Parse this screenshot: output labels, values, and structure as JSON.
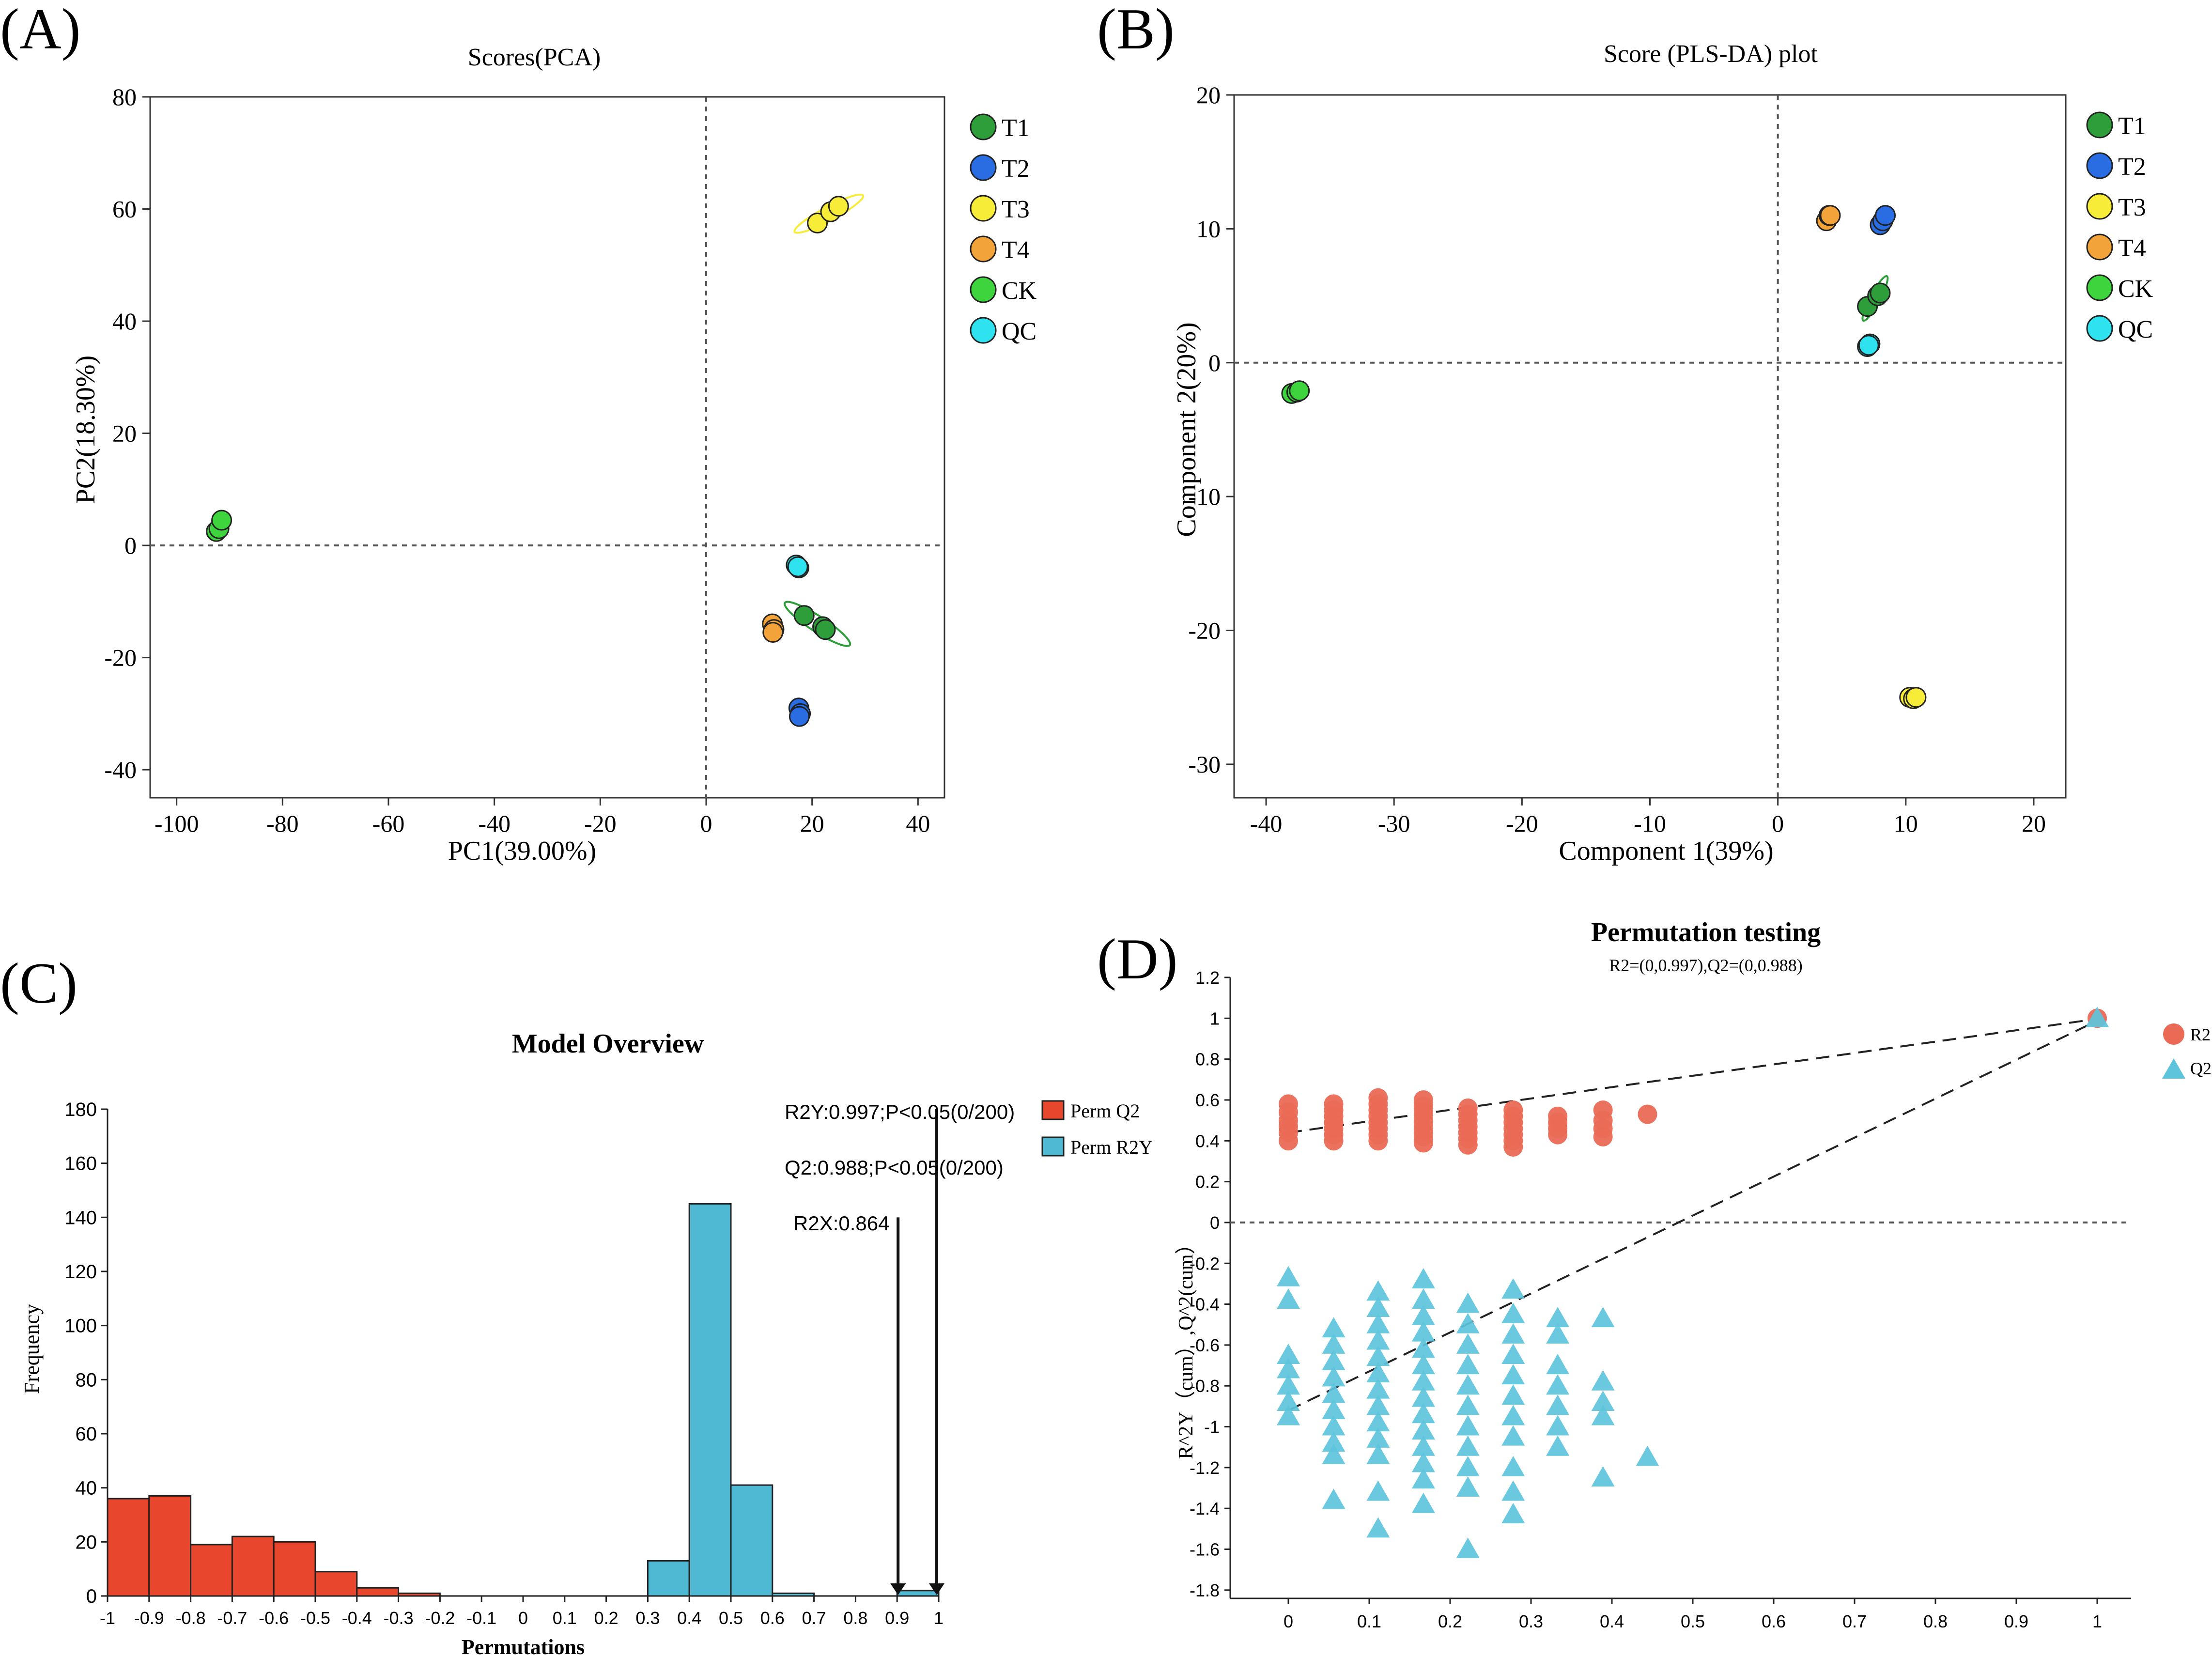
{
  "figure": {
    "panel_labels": [
      "(A)",
      "(B)",
      "(C)",
      "(D)"
    ]
  },
  "chart_data": [
    {
      "type": "scatter",
      "title": "Scores(PCA)",
      "xlabel": "PC1(39.00%)",
      "ylabel": "PC2(18.30%)",
      "xlim": [
        -105,
        45
      ],
      "ylim": [
        -45,
        80
      ],
      "xticks": [
        -100,
        -80,
        -60,
        -40,
        -20,
        0,
        20,
        40
      ],
      "yticks": [
        -40,
        -20,
        0,
        20,
        40,
        60,
        80
      ],
      "xtick_labels": [
        "-100",
        "-80",
        "-60",
        "-40",
        "-20",
        "0",
        "20",
        "40"
      ],
      "ytick_labels": [
        "-40",
        "-20",
        "0",
        "20",
        "40",
        "60",
        "80"
      ],
      "legend": [
        "T1",
        "T2",
        "T3",
        "T4",
        "CK",
        "QC"
      ],
      "series": [
        {
          "name": "T1",
          "color": "#2e9e3a",
          "x": [
            18.5,
            22,
            22.5
          ],
          "y": [
            -12.5,
            -14.5,
            -15
          ]
        },
        {
          "name": "T2",
          "color": "#2a6de3",
          "x": [
            17.5,
            17.8,
            17.6
          ],
          "y": [
            -29,
            -30,
            -30.5
          ]
        },
        {
          "name": "T3",
          "color": "#f7ec38",
          "x": [
            21,
            23.5,
            25
          ],
          "y": [
            57.5,
            59.5,
            60.5
          ]
        },
        {
          "name": "T4",
          "color": "#f2a33a",
          "x": [
            12.5,
            12.8,
            12.6
          ],
          "y": [
            -14,
            -15,
            -15.5
          ]
        },
        {
          "name": "CK",
          "color": "#3ed43e",
          "x": [
            -92.5,
            -92,
            -91.5
          ],
          "y": [
            2.5,
            3,
            4.5
          ]
        },
        {
          "name": "QC",
          "color": "#2ee3ef",
          "x": [
            17,
            17.5,
            17.3
          ],
          "y": [
            -3.5,
            -4,
            -3.8
          ]
        }
      ]
    },
    {
      "type": "scatter",
      "title": "Score (PLS-DA) plot",
      "xlabel": "Component 1(39%)",
      "ylabel": "Component 2(20%)",
      "xlim": [
        -42.5,
        22.5
      ],
      "ylim": [
        -32.5,
        20
      ],
      "xticks": [
        -40,
        -30,
        -20,
        -10,
        0,
        10,
        20
      ],
      "yticks": [
        -30,
        -20,
        -10,
        0,
        10,
        20
      ],
      "xtick_labels": [
        "-40",
        "-30",
        "-20",
        "-10",
        "0",
        "10",
        "20"
      ],
      "ytick_labels": [
        "-30",
        "-20",
        "-10",
        "0",
        "10",
        "20"
      ],
      "legend": [
        "T1",
        "T2",
        "T3",
        "T4",
        "CK",
        "QC"
      ],
      "series": [
        {
          "name": "T1",
          "color": "#2e9e3a",
          "x": [
            7,
            7.8,
            8
          ],
          "y": [
            4.2,
            5,
            5.2
          ]
        },
        {
          "name": "T2",
          "color": "#2a6de3",
          "x": [
            8,
            8.2,
            8.4
          ],
          "y": [
            10.3,
            10.6,
            11
          ]
        },
        {
          "name": "T3",
          "color": "#f7ec38",
          "x": [
            10.3,
            10.6,
            10.8
          ],
          "y": [
            -25,
            -25.1,
            -25
          ]
        },
        {
          "name": "T4",
          "color": "#f2a33a",
          "x": [
            3.8,
            4,
            4.1
          ],
          "y": [
            10.6,
            11,
            11
          ]
        },
        {
          "name": "CK",
          "color": "#3ed43e",
          "x": [
            -38,
            -37.6,
            -37.4
          ],
          "y": [
            -2.3,
            -2.2,
            -2.1
          ]
        },
        {
          "name": "QC",
          "color": "#2ee3ef",
          "x": [
            7,
            7.2,
            7.1
          ],
          "y": [
            1.2,
            1.4,
            1.3
          ]
        }
      ]
    },
    {
      "type": "bar",
      "title": "Model Overview",
      "xlabel": "Permutations",
      "ylabel": "Frequency",
      "xlim": [
        -1,
        1
      ],
      "ylim": [
        0,
        180
      ],
      "xticks": [
        -1,
        -0.9,
        -0.8,
        -0.7,
        -0.6,
        -0.5,
        -0.4,
        -0.3,
        -0.2,
        -0.1,
        0,
        0.1,
        0.2,
        0.3,
        0.4,
        0.5,
        0.6,
        0.7,
        0.8,
        0.9,
        1
      ],
      "xtick_labels": [
        "-1",
        "-0.9",
        "-0.8",
        "-0.7",
        "-0.6",
        "-0.5",
        "-0.4",
        "-0.3",
        "-0.2",
        "-0.1",
        "0",
        "0.1",
        "0.2",
        "0.3",
        "0.4",
        "0.5",
        "0.6",
        "0.7",
        "0.8",
        "0.9",
        "1"
      ],
      "yticks": [
        0,
        20,
        40,
        60,
        80,
        100,
        120,
        140,
        160,
        180
      ],
      "ytick_labels": [
        "0",
        "20",
        "40",
        "60",
        "80",
        "100",
        "120",
        "140",
        "160",
        "180"
      ],
      "bin_width": 0.1,
      "legend": [
        "Perm Q2",
        "Perm R2Y"
      ],
      "series": [
        {
          "name": "Perm Q2",
          "color": "#e8472d",
          "bin_starts": [
            -1,
            -0.9,
            -0.8,
            -0.7,
            -0.6,
            -0.5,
            -0.4,
            -0.3,
            -0.2,
            -0.1,
            0,
            0.1,
            0.2
          ],
          "values": [
            36,
            37,
            19,
            22,
            20,
            9,
            3,
            1,
            0,
            0,
            0,
            0,
            0
          ]
        },
        {
          "name": "Perm R2Y",
          "color": "#4fb8d3",
          "bin_starts": [
            0.3,
            0.4,
            0.5,
            0.6,
            0.7,
            0.9
          ],
          "values": [
            13,
            145,
            41,
            1,
            0,
            2
          ]
        }
      ],
      "annotations": [
        {
          "text": "R2Y:0.997;P<0.05(0/200)",
          "x": 1.0,
          "y": 180
        },
        {
          "text": "Q2:0.988;P<0.05(0/200)",
          "x": 0.988,
          "y": 160
        },
        {
          "text": "R2X:0.864",
          "x": 0.864,
          "y": 140
        }
      ]
    },
    {
      "type": "scatter",
      "title": "Permutation testing",
      "subtitle": "R2=(0,0.997),Q2=(0,0.988)",
      "xlabel": "",
      "ylabel": "R^2Y（cum）,Q^2(cum）",
      "xlim": [
        -0.05,
        1.05
      ],
      "ylim": [
        -1.9,
        1.2
      ],
      "xticks": [
        0,
        0.1,
        0.2,
        0.3,
        0.4,
        0.5,
        0.6,
        0.7,
        0.8,
        0.9,
        1
      ],
      "xtick_labels": [
        "0",
        "0.1",
        "0.2",
        "0.3",
        "0.4",
        "0.5",
        "0.6",
        "0.7",
        "0.8",
        "0.9",
        "1"
      ],
      "yticks": [
        1.2,
        1,
        0.8,
        0.6,
        0.4,
        0.2,
        0,
        -0.2,
        -0.4,
        -0.6,
        -0.8,
        -1,
        -1.2,
        -1.4,
        -1.6,
        -1.8
      ],
      "ytick_labels": [
        "1.2",
        "1",
        "0.8",
        "0.6",
        "0.4",
        "0.2",
        "0",
        "-0.2",
        "-0.4",
        "-0.6",
        "-0.8",
        "-1",
        "-1.2",
        "-1.4",
        "-1.6",
        "-1.8"
      ],
      "legend": [
        "R2",
        "Q2"
      ],
      "series": [
        {
          "name": "R2",
          "color": "#ea6a55",
          "marker": "circle",
          "groups": [
            {
              "x": 0,
              "y": [
                0.58,
                0.54,
                0.5,
                0.47,
                0.44,
                0.4
              ]
            },
            {
              "x": 0.056,
              "y": [
                0.58,
                0.55,
                0.52,
                0.49,
                0.46,
                0.43,
                0.4
              ]
            },
            {
              "x": 0.111,
              "y": [
                0.61,
                0.58,
                0.55,
                0.52,
                0.49,
                0.46,
                0.43,
                0.4
              ]
            },
            {
              "x": 0.167,
              "y": [
                0.6,
                0.57,
                0.54,
                0.51,
                0.48,
                0.45,
                0.42,
                0.39
              ]
            },
            {
              "x": 0.222,
              "y": [
                0.56,
                0.53,
                0.5,
                0.47,
                0.44,
                0.41,
                0.38
              ]
            },
            {
              "x": 0.278,
              "y": [
                0.55,
                0.52,
                0.49,
                0.46,
                0.43,
                0.4,
                0.37
              ]
            },
            {
              "x": 0.333,
              "y": [
                0.52,
                0.49,
                0.46,
                0.43
              ]
            },
            {
              "x": 0.389,
              "y": [
                0.55,
                0.5,
                0.46,
                0.42
              ]
            },
            {
              "x": 0.444,
              "y": [
                0.53
              ]
            },
            {
              "x": 1,
              "y": [
                1.0
              ]
            }
          ]
        },
        {
          "name": "Q2",
          "color": "#5ec4dc",
          "marker": "triangle",
          "groups": [
            {
              "x": 0,
              "y": [
                -0.27,
                -0.38,
                -0.65,
                -0.72,
                -0.8,
                -0.88,
                -0.95
              ]
            },
            {
              "x": 0.056,
              "y": [
                -0.52,
                -0.6,
                -0.68,
                -0.76,
                -0.84,
                -0.92,
                -1.0,
                -1.08,
                -1.14,
                -1.36
              ]
            },
            {
              "x": 0.111,
              "y": [
                -0.34,
                -0.42,
                -0.5,
                -0.58,
                -0.66,
                -0.74,
                -0.82,
                -0.9,
                -0.98,
                -1.06,
                -1.14,
                -1.32,
                -1.5
              ]
            },
            {
              "x": 0.167,
              "y": [
                -0.28,
                -0.38,
                -0.46,
                -0.54,
                -0.62,
                -0.7,
                -0.78,
                -0.86,
                -0.94,
                -1.02,
                -1.1,
                -1.18,
                -1.26,
                -1.38
              ]
            },
            {
              "x": 0.222,
              "y": [
                -0.4,
                -0.5,
                -0.6,
                -0.7,
                -0.8,
                -0.9,
                -1.0,
                -1.1,
                -1.2,
                -1.3,
                -1.6
              ]
            },
            {
              "x": 0.278,
              "y": [
                -0.33,
                -0.45,
                -0.55,
                -0.65,
                -0.75,
                -0.85,
                -0.95,
                -1.05,
                -1.2,
                -1.32,
                -1.43
              ]
            },
            {
              "x": 0.333,
              "y": [
                -0.47,
                -0.55,
                -0.7,
                -0.8,
                -0.9,
                -1.0,
                -1.1
              ]
            },
            {
              "x": 0.389,
              "y": [
                -0.47,
                -0.78,
                -0.88,
                -0.95,
                -1.25
              ]
            },
            {
              "x": 0.444,
              "y": [
                -1.15
              ]
            },
            {
              "x": 1,
              "y": [
                1.0
              ]
            }
          ]
        }
      ],
      "regression_lines": [
        {
          "name": "R2",
          "x": [
            0,
            1
          ],
          "y": [
            0.44,
            0.997
          ]
        },
        {
          "name": "Q2",
          "x": [
            0,
            1
          ],
          "y": [
            -0.92,
            0.988
          ]
        }
      ]
    }
  ]
}
